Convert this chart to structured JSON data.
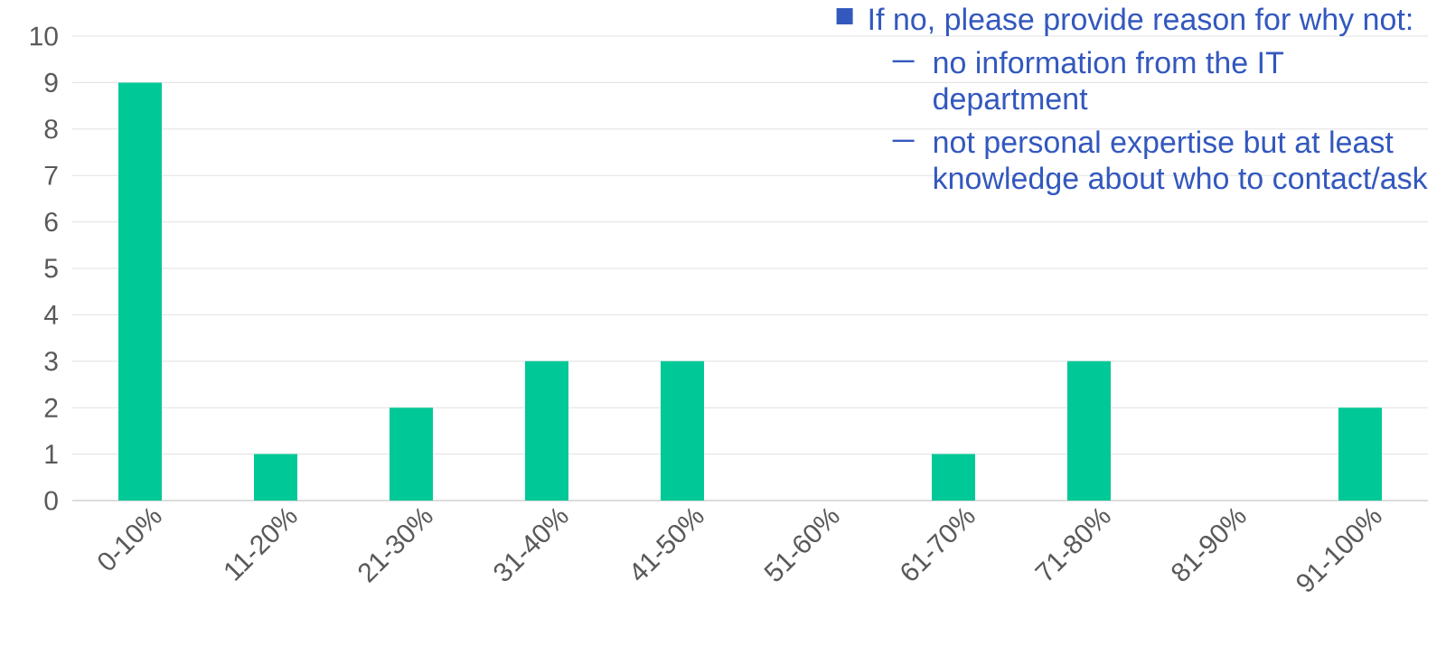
{
  "chart_data": {
    "type": "bar",
    "categories": [
      "0-10%",
      "11-20%",
      "21-30%",
      "31-40%",
      "41-50%",
      "51-60%",
      "61-70%",
      "71-80%",
      "81-90%",
      "91-100%"
    ],
    "values": [
      9,
      1,
      2,
      3,
      3,
      0,
      1,
      3,
      0,
      2
    ],
    "color": "#00c896",
    "ylim": [
      0,
      10
    ],
    "yticks": [
      0,
      1,
      2,
      3,
      4,
      5,
      6,
      7,
      8,
      9,
      10
    ],
    "grid": "y",
    "annotations": [
      "If no, please provide reason for why not:",
      "no information from the IT department",
      "not personal expertise but at least knowledge about who to contact/ask"
    ]
  }
}
